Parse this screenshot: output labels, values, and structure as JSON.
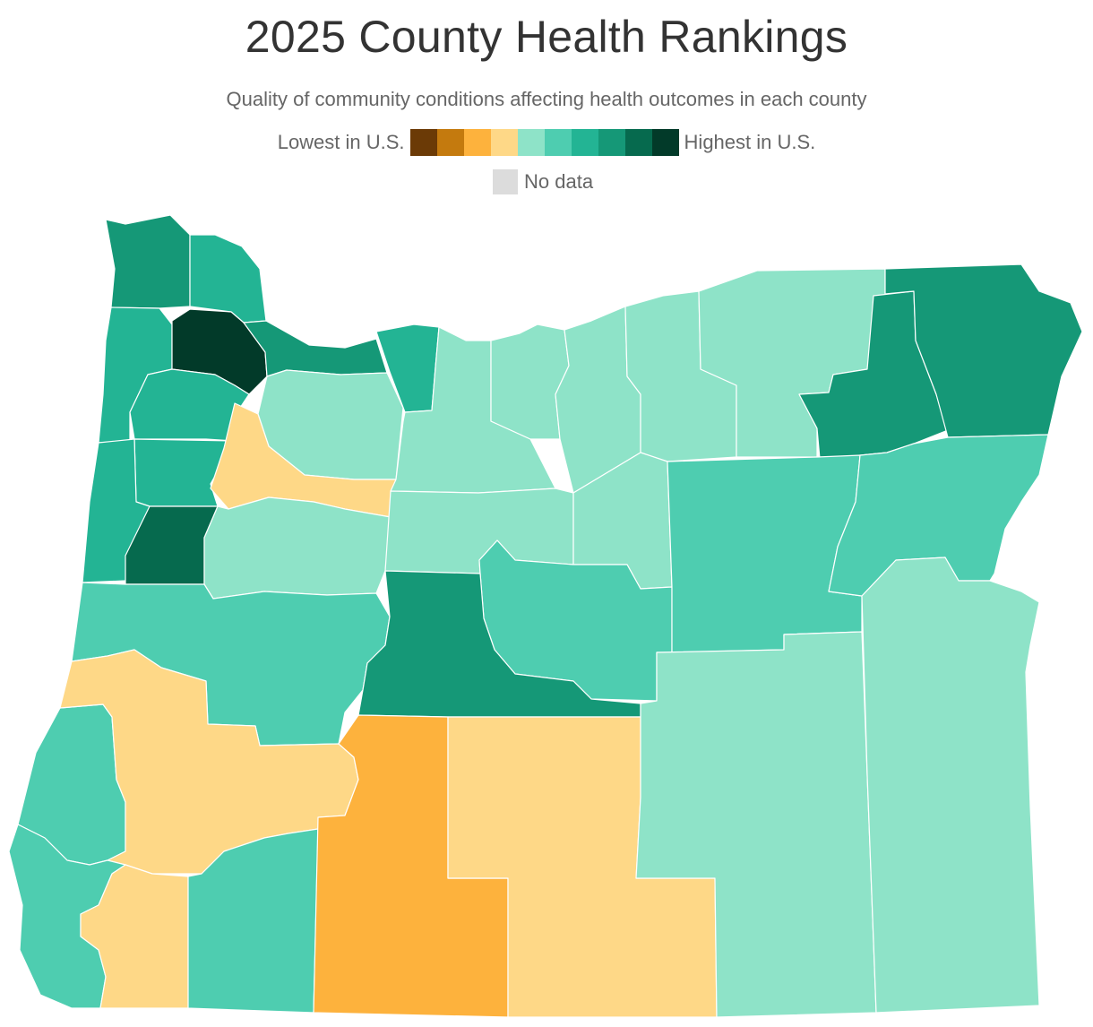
{
  "title": "2025 County Health Rankings",
  "subtitle": "Quality of community conditions affecting health outcomes in each county",
  "legend": {
    "low_label": "Lowest in U.S.",
    "high_label": "Highest in U.S.",
    "colors": [
      "#6b3a06",
      "#c47a0e",
      "#fdb23d",
      "#fed887",
      "#8ee3c8",
      "#4ecdb0",
      "#23b494",
      "#159877",
      "#066a4e",
      "#023a29"
    ],
    "nodata_label": "No data",
    "nodata_color": "#dcdcdc"
  },
  "counties": [
    {
      "id": "clatsop",
      "level": 7
    },
    {
      "id": "columbia",
      "level": 6
    },
    {
      "id": "tillamook",
      "level": 6
    },
    {
      "id": "washington",
      "level": 9
    },
    {
      "id": "multnomah",
      "level": 7
    },
    {
      "id": "hood-river",
      "level": 6
    },
    {
      "id": "yamhill",
      "level": 6
    },
    {
      "id": "polk",
      "level": 6
    },
    {
      "id": "lincoln",
      "level": 6
    },
    {
      "id": "clackamas",
      "level": 4
    },
    {
      "id": "marion",
      "level": 3
    },
    {
      "id": "benton",
      "level": 8
    },
    {
      "id": "linn",
      "level": 4
    },
    {
      "id": "wasco",
      "level": 4
    },
    {
      "id": "sherman",
      "level": 4
    },
    {
      "id": "gilliam",
      "level": 4
    },
    {
      "id": "morrow",
      "level": 4
    },
    {
      "id": "umatilla",
      "level": 4
    },
    {
      "id": "union",
      "level": 7
    },
    {
      "id": "wallowa",
      "level": 7
    },
    {
      "id": "jefferson",
      "level": 4
    },
    {
      "id": "wheeler",
      "level": 4
    },
    {
      "id": "lane",
      "level": 5
    },
    {
      "id": "crook",
      "level": 5
    },
    {
      "id": "grant",
      "level": 5
    },
    {
      "id": "baker",
      "level": 5
    },
    {
      "id": "deschutes",
      "level": 7
    },
    {
      "id": "coos",
      "level": 5
    },
    {
      "id": "douglas",
      "level": 3
    },
    {
      "id": "curry",
      "level": 5
    },
    {
      "id": "josephine",
      "level": 3
    },
    {
      "id": "jackson",
      "level": 5
    },
    {
      "id": "klamath",
      "level": 2
    },
    {
      "id": "lake",
      "level": 3
    },
    {
      "id": "harney",
      "level": 4
    },
    {
      "id": "malheur",
      "level": 4
    }
  ]
}
